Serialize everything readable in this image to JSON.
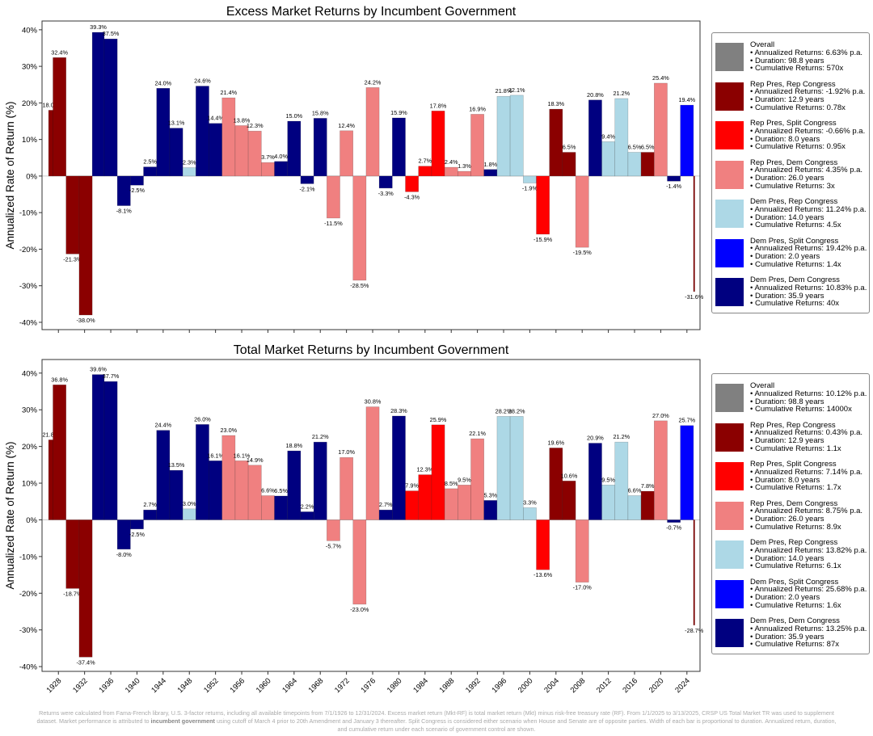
{
  "footnote": {
    "before": "Returns were calculated from Fama-French library, U.S. 3-factor returns, including all available timepoints from 7/1/1926 to 12/31/2024. Excess market return (Mkt-RF) is total market return (Mkt) minus risk-free treasury rate (RF). From 1/1/2025 to 3/13/2025, CRSP US Total Market TR was used to supplement dataset.  Market performance is attributed to",
    "bold": "incumbent government",
    "after": "using cutoff of March 4 prior to 20th Amendment and January 3 thereafter. Split Congress is considered either scenario when House and Senate are of opposite parties. Width of each bar is proportional to duration. Annualized return, duration, and cumulative return under each scenario of government control are shown."
  },
  "colors": {
    "overall": "#808080",
    "RR": "#8b0000",
    "RS": "#ff0000",
    "RD": "#f08080",
    "DR": "#add8e6",
    "DS": "#0000ff",
    "DD": "#000080"
  },
  "periods": [
    {
      "start": 1926.5,
      "end": 1927.17,
      "group": "RR"
    },
    {
      "start": 1927.17,
      "end": 1929.17,
      "group": "RR"
    },
    {
      "start": 1929.17,
      "end": 1931.17,
      "group": "RR"
    },
    {
      "start": 1931.17,
      "end": 1933.17,
      "group": "RR"
    },
    {
      "start": 1933.17,
      "end": 1935,
      "group": "DD"
    },
    {
      "start": 1935,
      "end": 1937,
      "group": "DD"
    },
    {
      "start": 1937,
      "end": 1939,
      "group": "DD"
    },
    {
      "start": 1939,
      "end": 1941,
      "group": "DD"
    },
    {
      "start": 1941,
      "end": 1943,
      "group": "DD"
    },
    {
      "start": 1943,
      "end": 1945,
      "group": "DD"
    },
    {
      "start": 1945,
      "end": 1947,
      "group": "DD"
    },
    {
      "start": 1947,
      "end": 1949,
      "group": "DR"
    },
    {
      "start": 1949,
      "end": 1951,
      "group": "DD"
    },
    {
      "start": 1951,
      "end": 1953,
      "group": "DD"
    },
    {
      "start": 1953,
      "end": 1955,
      "group": "RD"
    },
    {
      "start": 1955,
      "end": 1957,
      "group": "RD"
    },
    {
      "start": 1957,
      "end": 1959,
      "group": "RD"
    },
    {
      "start": 1959,
      "end": 1961,
      "group": "RD"
    },
    {
      "start": 1961,
      "end": 1963,
      "group": "DD"
    },
    {
      "start": 1963,
      "end": 1965,
      "group": "DD"
    },
    {
      "start": 1965,
      "end": 1967,
      "group": "DD"
    },
    {
      "start": 1967,
      "end": 1969,
      "group": "DD"
    },
    {
      "start": 1969,
      "end": 1971,
      "group": "RD"
    },
    {
      "start": 1971,
      "end": 1973,
      "group": "RD"
    },
    {
      "start": 1973,
      "end": 1975,
      "group": "RD"
    },
    {
      "start": 1975,
      "end": 1977,
      "group": "RD"
    },
    {
      "start": 1977,
      "end": 1979,
      "group": "DD"
    },
    {
      "start": 1979,
      "end": 1981,
      "group": "DD"
    },
    {
      "start": 1981,
      "end": 1983,
      "group": "RS"
    },
    {
      "start": 1983,
      "end": 1985,
      "group": "RS"
    },
    {
      "start": 1985,
      "end": 1987,
      "group": "RS"
    },
    {
      "start": 1987,
      "end": 1989,
      "group": "RD"
    },
    {
      "start": 1989,
      "end": 1991,
      "group": "RD"
    },
    {
      "start": 1991,
      "end": 1993,
      "group": "RD"
    },
    {
      "start": 1993,
      "end": 1995,
      "group": "DD"
    },
    {
      "start": 1995,
      "end": 1997,
      "group": "DR"
    },
    {
      "start": 1997,
      "end": 1999,
      "group": "DR"
    },
    {
      "start": 1999,
      "end": 2001,
      "group": "DR"
    },
    {
      "start": 2001,
      "end": 2003,
      "group": "RS"
    },
    {
      "start": 2003,
      "end": 2005,
      "group": "RR"
    },
    {
      "start": 2005,
      "end": 2007,
      "group": "RR"
    },
    {
      "start": 2007,
      "end": 2009,
      "group": "RD"
    },
    {
      "start": 2009,
      "end": 2011,
      "group": "DD"
    },
    {
      "start": 2011,
      "end": 2013,
      "group": "DR"
    },
    {
      "start": 2013,
      "end": 2015,
      "group": "DR"
    },
    {
      "start": 2015,
      "end": 2017,
      "group": "DR"
    },
    {
      "start": 2017,
      "end": 2019,
      "group": "RR"
    },
    {
      "start": 2019,
      "end": 2021,
      "group": "RD"
    },
    {
      "start": 2021,
      "end": 2023,
      "group": "DD"
    },
    {
      "start": 2023,
      "end": 2025,
      "group": "DS"
    },
    {
      "start": 2025,
      "end": 2025.2,
      "group": "RR"
    }
  ],
  "chart_data": [
    {
      "type": "bar",
      "title": "Excess Market Returns by Incumbent Government",
      "ylabel": "Annualized Rate of Return (%)",
      "xlabel": "",
      "ylim": [
        -42,
        42.4
      ],
      "xlim": [
        1925.5,
        2026
      ],
      "yticks": [
        -40,
        -30,
        -20,
        -10,
        0,
        10,
        20,
        30,
        40
      ],
      "xticks": [],
      "values": [
        18.0,
        32.4,
        -21.3,
        -38.0,
        39.3,
        37.5,
        -8.1,
        -2.5,
        2.5,
        24.0,
        13.1,
        2.3,
        24.6,
        14.4,
        21.4,
        13.8,
        12.3,
        3.7,
        4.0,
        15.0,
        -2.1,
        15.8,
        -11.5,
        12.4,
        -28.5,
        24.2,
        -3.3,
        15.9,
        -4.3,
        2.7,
        17.8,
        2.4,
        1.3,
        16.9,
        1.8,
        21.8,
        22.1,
        -1.9,
        -15.9,
        18.3,
        6.5,
        -19.5,
        20.8,
        9.4,
        21.2,
        6.5,
        6.5,
        25.4,
        -1.4,
        19.4,
        -31.6
      ],
      "legend_placement": "right",
      "legend": [
        {
          "group": "overall",
          "name": "Overall",
          "annualized": "• Annualized Returns: 6.63% p.a.",
          "duration": "• Duration: 98.8 years",
          "cumulative": "• Cumulative Returns: 570x"
        },
        {
          "group": "RR",
          "name": "Rep Pres, Rep Congress",
          "annualized": "• Annualized Returns: -1.92% p.a.",
          "duration": "• Duration: 12.9 years",
          "cumulative": "• Cumulative Returns: 0.78x"
        },
        {
          "group": "RS",
          "name": "Rep Pres, Split Congress",
          "annualized": "• Annualized Returns: -0.66% p.a.",
          "duration": "• Duration: 8.0 years",
          "cumulative": "• Cumulative Returns: 0.95x"
        },
        {
          "group": "RD",
          "name": "Rep Pres, Dem Congress",
          "annualized": "• Annualized Returns: 4.35% p.a.",
          "duration": "• Duration: 26.0 years",
          "cumulative": "• Cumulative Returns: 3x"
        },
        {
          "group": "DR",
          "name": "Dem Pres, Rep Congress",
          "annualized": "• Annualized Returns: 11.24% p.a.",
          "duration": "• Duration: 14.0 years",
          "cumulative": "• Cumulative Returns: 4.5x"
        },
        {
          "group": "DS",
          "name": "Dem Pres, Split Congress",
          "annualized": "• Annualized Returns: 19.42% p.a.",
          "duration": "• Duration: 2.0 years",
          "cumulative": "• Cumulative Returns: 1.4x"
        },
        {
          "group": "DD",
          "name": "Dem Pres, Dem Congress",
          "annualized": "• Annualized Returns: 10.83% p.a.",
          "duration": "• Duration: 35.9 years",
          "cumulative": "• Cumulative Returns: 40x"
        }
      ]
    },
    {
      "type": "bar",
      "title": "Total Market Returns by Incumbent Government",
      "ylabel": "Annualized Rate of Return (%)",
      "xlabel": "",
      "ylim": [
        -41.3,
        43.7
      ],
      "xlim": [
        1925.5,
        2026
      ],
      "yticks": [
        -40,
        -30,
        -20,
        -10,
        0,
        10,
        20,
        30,
        40
      ],
      "xticks": [
        1928,
        1932,
        1936,
        1940,
        1944,
        1948,
        1952,
        1956,
        1960,
        1964,
        1968,
        1972,
        1976,
        1980,
        1984,
        1988,
        1992,
        1996,
        2000,
        2004,
        2008,
        2012,
        2016,
        2020,
        2024
      ],
      "values": [
        21.8,
        36.8,
        -18.7,
        -37.4,
        39.6,
        37.7,
        -8.0,
        -2.5,
        2.7,
        24.4,
        13.5,
        3.0,
        26.0,
        16.1,
        23.0,
        16.1,
        14.9,
        6.6,
        6.5,
        18.8,
        2.2,
        21.2,
        -5.7,
        17.0,
        -23.0,
        30.8,
        2.7,
        28.3,
        7.9,
        12.3,
        25.9,
        8.5,
        9.5,
        22.1,
        5.3,
        28.2,
        28.2,
        3.3,
        -13.6,
        19.6,
        10.6,
        -17.0,
        20.9,
        9.5,
        21.2,
        6.6,
        7.8,
        27.0,
        -0.7,
        25.7,
        -28.7
      ],
      "legend_placement": "right",
      "legend": [
        {
          "group": "overall",
          "name": "Overall",
          "annualized": "• Annualized Returns: 10.12% p.a.",
          "duration": "• Duration: 98.8 years",
          "cumulative": "• Cumulative Returns: 14000x"
        },
        {
          "group": "RR",
          "name": "Rep Pres, Rep Congress",
          "annualized": "• Annualized Returns: 0.43% p.a.",
          "duration": "• Duration: 12.9 years",
          "cumulative": "• Cumulative Returns: 1.1x"
        },
        {
          "group": "RS",
          "name": "Rep Pres, Split Congress",
          "annualized": "• Annualized Returns: 7.14% p.a.",
          "duration": "• Duration: 8.0 years",
          "cumulative": "• Cumulative Returns: 1.7x"
        },
        {
          "group": "RD",
          "name": "Rep Pres, Dem Congress",
          "annualized": "• Annualized Returns: 8.75% p.a.",
          "duration": "• Duration: 26.0 years",
          "cumulative": "• Cumulative Returns: 8.9x"
        },
        {
          "group": "DR",
          "name": "Dem Pres, Rep Congress",
          "annualized": "• Annualized Returns: 13.82% p.a.",
          "duration": "• Duration: 14.0 years",
          "cumulative": "• Cumulative Returns: 6.1x"
        },
        {
          "group": "DS",
          "name": "Dem Pres, Split Congress",
          "annualized": "• Annualized Returns: 25.68% p.a.",
          "duration": "• Duration: 2.0 years",
          "cumulative": "• Cumulative Returns: 1.6x"
        },
        {
          "group": "DD",
          "name": "Dem Pres, Dem Congress",
          "annualized": "• Annualized Returns: 13.25% p.a.",
          "duration": "• Duration: 35.9 years",
          "cumulative": "• Cumulative Returns: 87x"
        }
      ]
    }
  ]
}
